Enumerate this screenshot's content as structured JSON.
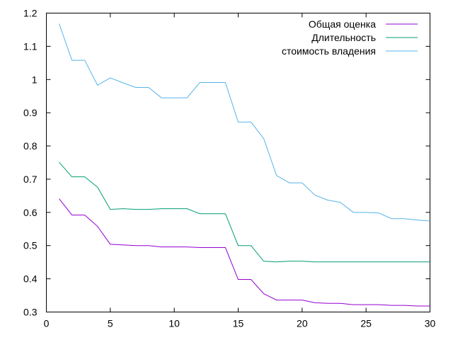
{
  "chart_data": {
    "type": "line",
    "title": "",
    "xlabel": "",
    "ylabel": "",
    "xlim": [
      0,
      30
    ],
    "ylim": [
      0.3,
      1.2
    ],
    "xticks": [
      "0",
      "5",
      "10",
      "15",
      "20",
      "25",
      "30"
    ],
    "yticks": [
      "0.3",
      "0.4",
      "0.5",
      "0.6",
      "0.7",
      "0.8",
      "0.9",
      "1",
      "1.1",
      "1.2"
    ],
    "grid": false,
    "legend_position": "top-right",
    "x": [
      1,
      2,
      3,
      4,
      5,
      6,
      7,
      8,
      9,
      10,
      11,
      12,
      13,
      14,
      15,
      16,
      17,
      18,
      19,
      20,
      21,
      22,
      23,
      24,
      25,
      26,
      27,
      28,
      29,
      30
    ],
    "series": [
      {
        "name": "Общая оценка",
        "color": "#9400d3",
        "values": [
          0.641,
          0.592,
          0.592,
          0.558,
          0.504,
          0.502,
          0.5,
          0.5,
          0.496,
          0.496,
          0.496,
          0.494,
          0.494,
          0.494,
          0.398,
          0.398,
          0.355,
          0.336,
          0.336,
          0.336,
          0.328,
          0.326,
          0.326,
          0.322,
          0.322,
          0.322,
          0.32,
          0.32,
          0.318,
          0.318
        ]
      },
      {
        "name": "Длительность",
        "color": "#009e73",
        "values": [
          0.751,
          0.707,
          0.707,
          0.676,
          0.609,
          0.611,
          0.609,
          0.609,
          0.611,
          0.611,
          0.611,
          0.596,
          0.596,
          0.596,
          0.5,
          0.5,
          0.453,
          0.451,
          0.453,
          0.453,
          0.451,
          0.451,
          0.451,
          0.451,
          0.451,
          0.451,
          0.451,
          0.451,
          0.451,
          0.451
        ]
      },
      {
        "name": "стоимость владения",
        "color": "#56b4e9",
        "values": [
          1.168,
          1.058,
          1.058,
          0.983,
          1.005,
          0.99,
          0.976,
          0.976,
          0.945,
          0.945,
          0.945,
          0.991,
          0.991,
          0.991,
          0.872,
          0.872,
          0.822,
          0.711,
          0.689,
          0.689,
          0.652,
          0.637,
          0.63,
          0.6,
          0.6,
          0.598,
          0.581,
          0.581,
          0.577,
          0.574
        ]
      }
    ]
  }
}
